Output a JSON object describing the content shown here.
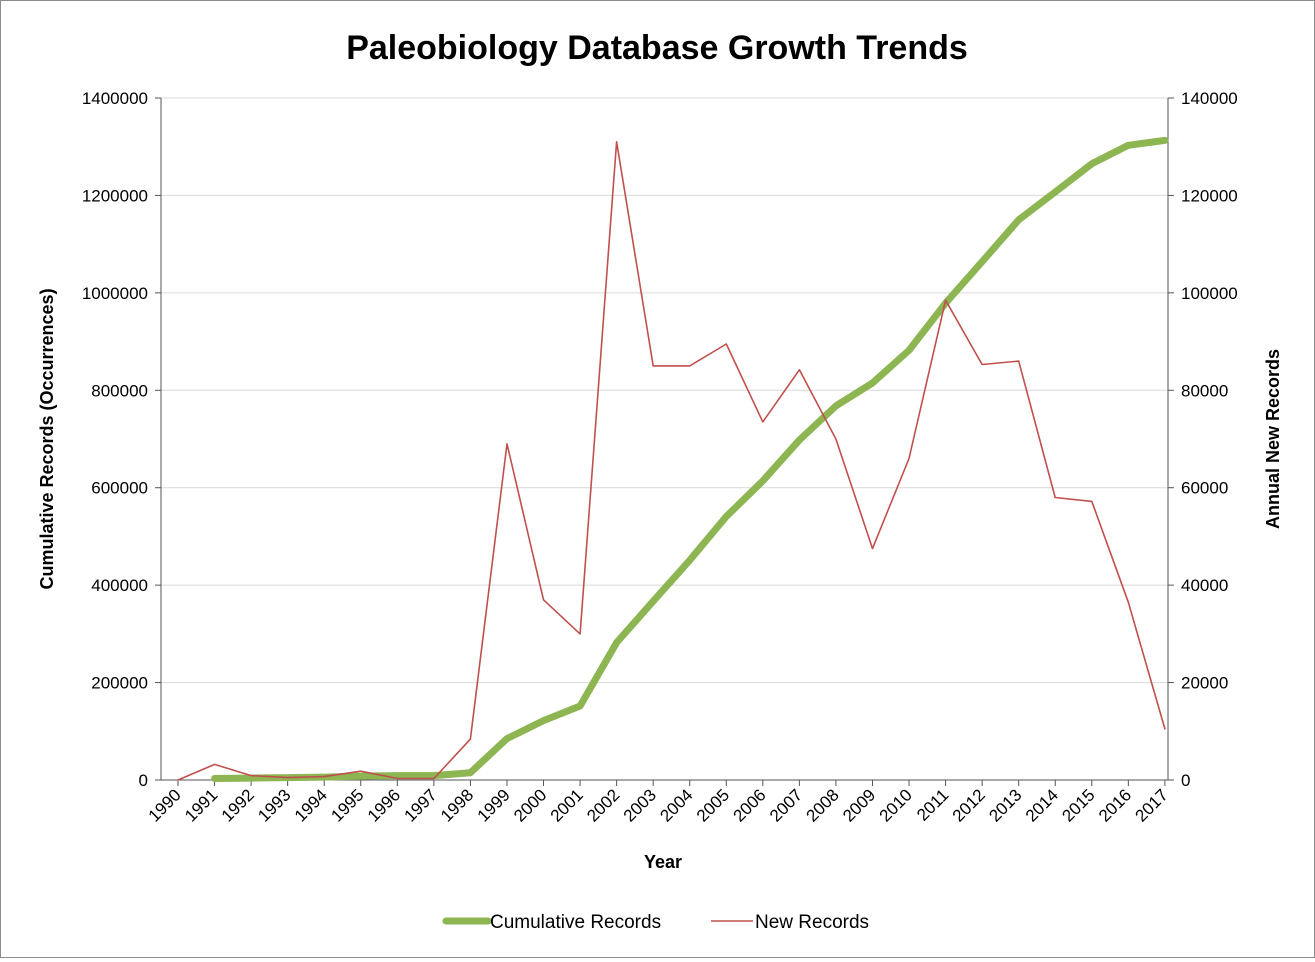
{
  "chart_data": {
    "type": "line",
    "title": "Paleobiology Database Growth Trends",
    "xlabel": "Year",
    "ylabel": "Cumulative Records (Occurrences)",
    "y2label": "Annual New Records",
    "categories": [
      "1990",
      "1991",
      "1992",
      "1993",
      "1994",
      "1995",
      "1996",
      "1997",
      "1998",
      "1999",
      "2000",
      "2001",
      "2002",
      "2003",
      "2004",
      "2005",
      "2006",
      "2007",
      "2008",
      "2009",
      "2010",
      "2011",
      "2012",
      "2013",
      "2014",
      "2015",
      "2016",
      "2017"
    ],
    "ylim": [
      0,
      1400000
    ],
    "y2lim": [
      0,
      140000
    ],
    "yticks": [
      "0",
      "200000",
      "400000",
      "600000",
      "800000",
      "1000000",
      "1200000",
      "1400000"
    ],
    "y2ticks": [
      "0",
      "20000",
      "40000",
      "60000",
      "80000",
      "100000",
      "120000",
      "140000"
    ],
    "grid": true,
    "legend_position": "bottom",
    "series": [
      {
        "name": "Cumulative Records",
        "axis": "left",
        "color": "#8db552",
        "values": [
          null,
          3000,
          4000,
          5000,
          6000,
          8000,
          9000,
          9000,
          15000,
          85000,
          122000,
          152000,
          282000,
          367000,
          451000,
          541000,
          614000,
          698000,
          768000,
          815000,
          882000,
          979000,
          1064000,
          1150000,
          1207000,
          1265000,
          1303000,
          1313000
        ]
      },
      {
        "name": "New Records",
        "axis": "right",
        "color": "#c0504d",
        "values": [
          0,
          3200,
          900,
          500,
          700,
          1800,
          300,
          300,
          8400,
          69000,
          37000,
          30000,
          131000,
          85000,
          85000,
          89500,
          73500,
          84200,
          70000,
          47500,
          66000,
          98500,
          85300,
          86000,
          58000,
          57200,
          36500,
          10500
        ]
      }
    ]
  }
}
